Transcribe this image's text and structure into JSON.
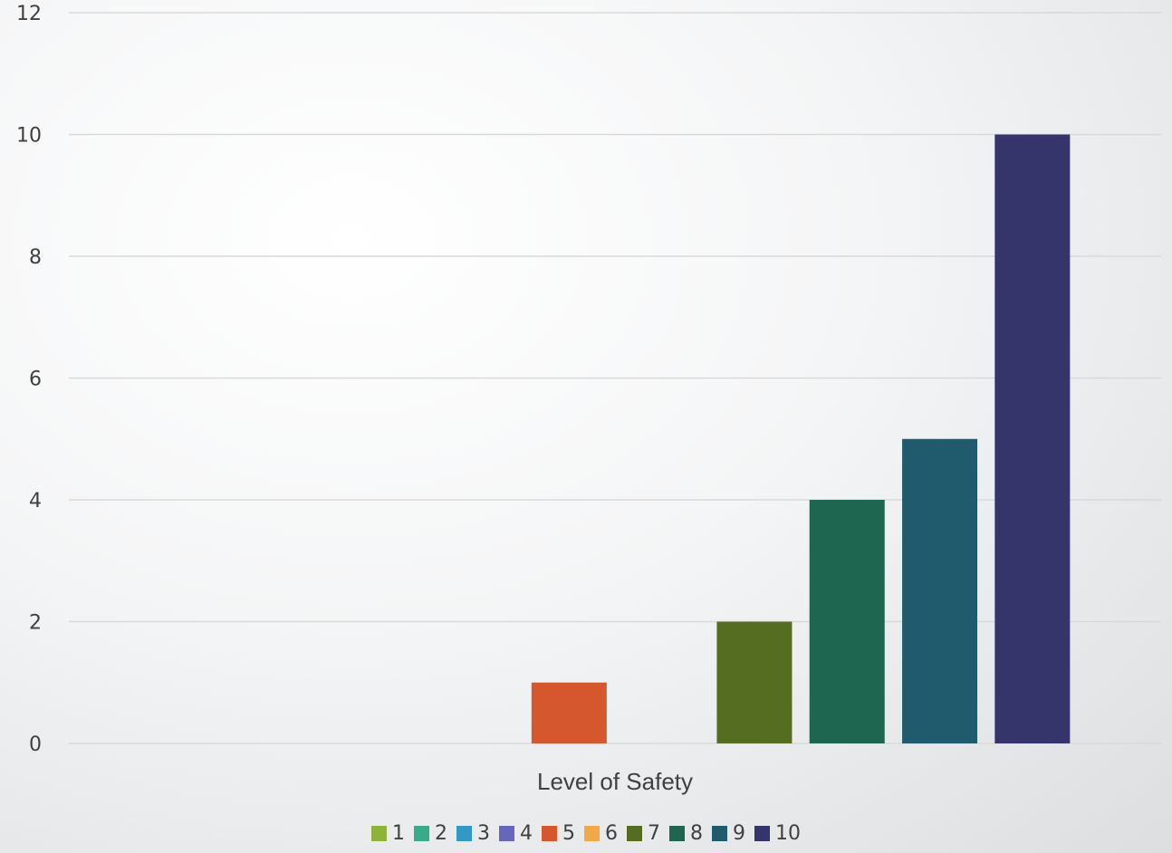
{
  "chart_data": {
    "type": "bar",
    "categories": [
      "Level of Safety"
    ],
    "xlabel": "Level of Safety",
    "ylabel": "",
    "ylim": [
      0,
      12
    ],
    "yticks": [
      "0",
      "2",
      "4",
      "6",
      "8",
      "10",
      "12"
    ],
    "grid": true,
    "legend_position": "bottom",
    "series": [
      {
        "name": "1",
        "values": [
          0
        ],
        "color": "#8DB33A"
      },
      {
        "name": "2",
        "values": [
          0
        ],
        "color": "#3AAA8A"
      },
      {
        "name": "3",
        "values": [
          0
        ],
        "color": "#3399C4"
      },
      {
        "name": "4",
        "values": [
          0
        ],
        "color": "#6666BB"
      },
      {
        "name": "5",
        "values": [
          1
        ],
        "color": "#D4572D"
      },
      {
        "name": "6",
        "values": [
          0
        ],
        "color": "#F0A849"
      },
      {
        "name": "7",
        "values": [
          2
        ],
        "color": "#546D20"
      },
      {
        "name": "8",
        "values": [
          4
        ],
        "color": "#1F6650"
      },
      {
        "name": "9",
        "values": [
          5
        ],
        "color": "#205A6D"
      },
      {
        "name": "10",
        "values": [
          10
        ],
        "color": "#35356C"
      }
    ]
  }
}
